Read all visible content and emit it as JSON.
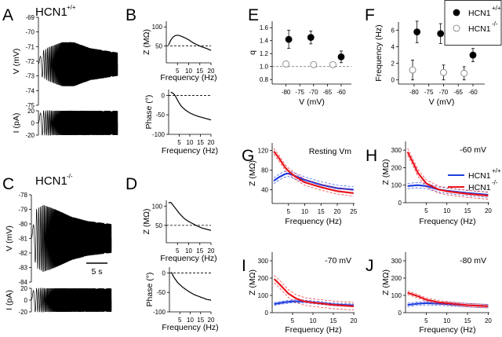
{
  "colors": {
    "wt": "#1f3fe0",
    "ko": "#e8141c",
    "black": "#000000"
  },
  "chart_data": [
    {
      "id": "A_V",
      "panel": "A",
      "type": "line",
      "title": "HCN1",
      "title_sup": "+/+",
      "ylabel": "V (mV)",
      "ylim": [
        -75,
        -69
      ],
      "yticks": [
        "-75",
        "-74",
        "-73",
        "-72",
        "-71",
        "-70",
        "-69"
      ],
      "xlim": [
        0,
        20
      ],
      "trace": {
        "kind": "chirp_voltage",
        "baseline": -72.2,
        "freq_range_hz": [
          0,
          20
        ],
        "duration_s": 20,
        "envelope": [
          [
            0,
            0.2
          ],
          [
            1,
            0.9
          ],
          [
            3,
            1.2
          ],
          [
            6,
            1.5
          ],
          [
            9,
            1.5
          ],
          [
            13,
            1.1
          ],
          [
            20,
            0.8
          ]
        ]
      }
    },
    {
      "id": "A_I",
      "panel": "A",
      "type": "line",
      "ylabel": "I (pA)",
      "ylim": [
        -20,
        20
      ],
      "yticks": [
        "-20",
        "0",
        "20"
      ],
      "xlim": [
        0,
        20
      ],
      "trace": {
        "kind": "chirp_current",
        "amplitude": 20,
        "freq_range_hz": [
          0,
          20
        ],
        "duration_s": 20
      }
    },
    {
      "id": "B_Z",
      "panel": "B",
      "type": "line",
      "xlabel": "Frequency (Hz)",
      "ylabel": "Z (MΩ)",
      "xlim": [
        0,
        20
      ],
      "ylim": [
        5,
        115
      ],
      "xticks": [
        "5",
        "10",
        "15",
        "20"
      ],
      "yticks": [
        "50",
        "100"
      ],
      "ref_line": 50,
      "series": [
        {
          "name": "HCN1+/+",
          "color": "black",
          "points": [
            [
              1,
              52
            ],
            [
              2,
              65
            ],
            [
              3,
              73
            ],
            [
              4,
              77
            ],
            [
              5,
              78
            ],
            [
              6,
              77
            ],
            [
              8,
              72
            ],
            [
              10,
              66
            ],
            [
              12,
              58
            ],
            [
              14,
              52
            ],
            [
              16,
              47
            ],
            [
              18,
              43
            ],
            [
              20,
              38
            ]
          ]
        }
      ]
    },
    {
      "id": "B_P",
      "panel": "B",
      "type": "line",
      "xlabel": "Frequency (Hz)",
      "ylabel": "Phase (°)",
      "xlim": [
        0,
        20
      ],
      "ylim": [
        -100,
        15
      ],
      "xticks": [
        "5",
        "10",
        "15",
        "20"
      ],
      "yticks": [
        "-100",
        "-50",
        "0"
      ],
      "ref_line": 0,
      "series": [
        {
          "name": "HCN1+/+",
          "color": "black",
          "points": [
            [
              1,
              8
            ],
            [
              2,
              6
            ],
            [
              3,
              0
            ],
            [
              4,
              -10
            ],
            [
              5,
              -20
            ],
            [
              6,
              -28
            ],
            [
              8,
              -38
            ],
            [
              10,
              -45
            ],
            [
              12,
              -50
            ],
            [
              14,
              -54
            ],
            [
              16,
              -57
            ],
            [
              18,
              -60
            ],
            [
              20,
              -63
            ]
          ]
        }
      ]
    },
    {
      "id": "C_V",
      "panel": "C",
      "type": "line",
      "title": "HCN1",
      "title_sup": "-/-",
      "ylabel": "V (mV)",
      "ylim": [
        -84,
        -78
      ],
      "yticks": [
        "-84",
        "-83",
        "-82",
        "-81",
        "-80",
        "-79",
        "-78"
      ],
      "xlim": [
        0,
        20
      ],
      "scalebar": "5 s",
      "trace": {
        "kind": "chirp_voltage",
        "baseline": -81.0,
        "freq_range_hz": [
          0,
          20
        ],
        "duration_s": 20,
        "envelope": [
          [
            0,
            0.2
          ],
          [
            1.2,
            2.0
          ],
          [
            3,
            2.3
          ],
          [
            6,
            2.0
          ],
          [
            10,
            1.5
          ],
          [
            14,
            1.2
          ],
          [
            20,
            1.0
          ]
        ]
      }
    },
    {
      "id": "C_I",
      "panel": "C",
      "type": "line",
      "ylabel": "I (pA)",
      "ylim": [
        -20,
        20
      ],
      "yticks": [
        "-20",
        "0",
        "20"
      ],
      "xlim": [
        0,
        20
      ],
      "trace": {
        "kind": "chirp_current",
        "amplitude": 20,
        "freq_range_hz": [
          0,
          20
        ],
        "duration_s": 20
      }
    },
    {
      "id": "D_Z",
      "panel": "D",
      "type": "line",
      "xlabel": "Frequency (Hz)",
      "ylabel": "Z (MΩ)",
      "xlim": [
        0,
        20
      ],
      "ylim": [
        5,
        115
      ],
      "xticks": [
        "5",
        "10",
        "15",
        "20"
      ],
      "yticks": [
        "50",
        "100"
      ],
      "ref_line": 50,
      "series": [
        {
          "name": "HCN1-/-",
          "color": "black",
          "points": [
            [
              1,
              108
            ],
            [
              2,
              110
            ],
            [
              4,
              95
            ],
            [
              6,
              80
            ],
            [
              8,
              68
            ],
            [
              10,
              60
            ],
            [
              12,
              54
            ],
            [
              14,
              48
            ],
            [
              16,
              43
            ],
            [
              18,
              40
            ],
            [
              20,
              37
            ]
          ]
        }
      ]
    },
    {
      "id": "D_P",
      "panel": "D",
      "type": "line",
      "xlabel": "Frequency (Hz)",
      "ylabel": "Phase (°)",
      "xlim": [
        0,
        20
      ],
      "ylim": [
        -100,
        15
      ],
      "xticks": [
        "5",
        "10",
        "15",
        "20"
      ],
      "yticks": [
        "-100",
        "-50",
        "0"
      ],
      "ref_line": 0,
      "series": [
        {
          "name": "HCN1-/-",
          "color": "black",
          "points": [
            [
              1,
              2
            ],
            [
              2,
              -10
            ],
            [
              4,
              -25
            ],
            [
              6,
              -35
            ],
            [
              8,
              -43
            ],
            [
              10,
              -50
            ],
            [
              12,
              -56
            ],
            [
              14,
              -60
            ],
            [
              16,
              -64
            ],
            [
              18,
              -68
            ],
            [
              20,
              -70
            ]
          ]
        }
      ]
    },
    {
      "id": "E",
      "panel": "E",
      "type": "scatter",
      "xlabel": "V (mV)",
      "ylabel": "q",
      "xlim": [
        -85,
        -56.3
      ],
      "ylim": [
        0.73,
        1.7
      ],
      "xticks": [
        "-80",
        "-75",
        "-70",
        "-65",
        "-60"
      ],
      "yticks": [
        "0.8",
        "1.0",
        "1.2",
        "1.4",
        "1.6"
      ],
      "ref_line": 1.0,
      "series": [
        {
          "name": "HCN1+/+",
          "filled": true,
          "points": [
            [
              -79,
              1.42,
              0.14
            ],
            [
              -71,
              1.45,
              0.1
            ],
            [
              -60,
              1.15,
              0.09
            ]
          ]
        },
        {
          "name": "HCN1-/-",
          "filled": false,
          "points": [
            [
              -80,
              1.04,
              0
            ],
            [
              -70,
              1.03,
              0
            ],
            [
              -63,
              1.03,
              0
            ]
          ]
        }
      ]
    },
    {
      "id": "F",
      "panel": "F",
      "type": "scatter",
      "xlabel": "V (mV)",
      "ylabel": "Frequency (Hz)",
      "xlim": [
        -85.3,
        -56
      ],
      "ylim": [
        -0.5,
        7
      ],
      "xticks": [
        "-80",
        "-75",
        "-70",
        "-65",
        "-60"
      ],
      "yticks": [
        "0",
        "2",
        "4",
        "6"
      ],
      "legend": {
        "placement": "top-right",
        "entries": [
          {
            "label": "HCN1",
            "sup": "+/+",
            "filled": true
          },
          {
            "label": "HCN1",
            "sup": "-/-",
            "filled": false
          }
        ]
      },
      "series": [
        {
          "name": "HCN1+/+",
          "filled": true,
          "points": [
            [
              -79,
              5.8,
              1.3
            ],
            [
              -71,
              5.6,
              1.2
            ],
            [
              -60,
              3.0,
              0.8
            ]
          ]
        },
        {
          "name": "HCN1-/-",
          "filled": false,
          "points": [
            [
              -80.5,
              1.2,
              1.2
            ],
            [
              -70,
              0.9,
              0.9
            ],
            [
              -63,
              0.8,
              0.8
            ]
          ]
        }
      ]
    },
    {
      "id": "G",
      "panel": "G",
      "type": "line",
      "annotation": "Resting Vm",
      "xlabel": "Frequency (Hz)",
      "ylabel": "Z (MΩ)",
      "xlim": [
        0,
        25.3
      ],
      "ylim": [
        12,
        135
      ],
      "xticks": [
        "5",
        "10",
        "15",
        "20",
        "25"
      ],
      "yticks": [
        "40",
        "80",
        "120"
      ],
      "series": [
        {
          "name": "HCN1+/+",
          "color": "wt",
          "band": 6,
          "points": [
            [
              0.5,
              58
            ],
            [
              2,
              65
            ],
            [
              4,
              72
            ],
            [
              5,
              73
            ],
            [
              7,
              68
            ],
            [
              10,
              60
            ],
            [
              15,
              50
            ],
            [
              20,
              43
            ],
            [
              25,
              40
            ]
          ]
        },
        {
          "name": "HCN1-/-",
          "color": "ko",
          "band": 6,
          "points": [
            [
              0.5,
              118
            ],
            [
              2,
              105
            ],
            [
              4,
              85
            ],
            [
              5,
              78
            ],
            [
              7,
              67
            ],
            [
              10,
              55
            ],
            [
              15,
              45
            ],
            [
              20,
              37
            ],
            [
              25,
              33
            ]
          ]
        }
      ]
    },
    {
      "id": "H",
      "panel": "H",
      "type": "line",
      "annotation": "-60 mV",
      "xlabel": "Frequency (Hz)",
      "ylabel": "Z (MΩ)",
      "xlim": [
        0,
        20.3
      ],
      "ylim": [
        0,
        350
      ],
      "xticks": [
        "5",
        "10",
        "15",
        "20"
      ],
      "yticks": [
        "0",
        "100",
        "200",
        "300"
      ],
      "legend": {
        "placement": "right",
        "entries": [
          {
            "label": "HCN1",
            "sup": "+/+",
            "color": "wt"
          },
          {
            "label": "HCN1",
            "sup": "-/-",
            "color": "ko"
          }
        ]
      },
      "series": [
        {
          "name": "HCN1+/+",
          "color": "wt",
          "band": 15,
          "points": [
            [
              0.5,
              95
            ],
            [
              3,
              100
            ],
            [
              5,
              95
            ],
            [
              8,
              75
            ],
            [
              10,
              68
            ],
            [
              15,
              55
            ],
            [
              20,
              45
            ]
          ]
        },
        {
          "name": "HCN1-/-",
          "color": "ko",
          "band": 20,
          "points": [
            [
              0.5,
              290
            ],
            [
              2,
              220
            ],
            [
              3,
              170
            ],
            [
              5,
              110
            ],
            [
              8,
              75
            ],
            [
              10,
              65
            ],
            [
              15,
              50
            ],
            [
              20,
              40
            ]
          ]
        }
      ]
    },
    {
      "id": "I",
      "panel": "I",
      "type": "line",
      "annotation": "-70 mV",
      "xlabel": "Frequency (Hz)",
      "ylabel": "Z (MΩ)",
      "xlim": [
        0,
        20.2
      ],
      "ylim": [
        0,
        350
      ],
      "xticks": [
        "5",
        "10",
        "15",
        "20"
      ],
      "yticks": [
        "0",
        "100",
        "200",
        "300"
      ],
      "series": [
        {
          "name": "HCN1+/+",
          "color": "wt",
          "band": 8,
          "points": [
            [
              0.5,
              50
            ],
            [
              3,
              60
            ],
            [
              5,
              65
            ],
            [
              8,
              65
            ],
            [
              10,
              60
            ],
            [
              15,
              48
            ],
            [
              20,
              42
            ]
          ]
        },
        {
          "name": "HCN1-/-",
          "color": "ko",
          "band": 22,
          "points": [
            [
              0.5,
              195
            ],
            [
              2,
              160
            ],
            [
              4,
              110
            ],
            [
              6,
              80
            ],
            [
              8,
              65
            ],
            [
              10,
              58
            ],
            [
              15,
              45
            ],
            [
              20,
              37
            ]
          ]
        }
      ]
    },
    {
      "id": "J",
      "panel": "J",
      "type": "line",
      "annotation": "-80 mV",
      "xlabel": "Frequency (Hz)",
      "ylabel": "Z (MΩ)",
      "xlim": [
        0,
        20.3
      ],
      "ylim": [
        0,
        350
      ],
      "xticks": [
        "5",
        "10",
        "15",
        "20"
      ],
      "yticks": [
        "0",
        "100",
        "200",
        "300"
      ],
      "series": [
        {
          "name": "HCN1+/+",
          "color": "wt",
          "band": 10,
          "points": [
            [
              0.5,
              45
            ],
            [
              3,
              52
            ],
            [
              5,
              55
            ],
            [
              10,
              50
            ],
            [
              15,
              43
            ],
            [
              20,
              38
            ]
          ]
        },
        {
          "name": "HCN1-/-",
          "color": "ko",
          "band": 10,
          "points": [
            [
              0.5,
              115
            ],
            [
              3,
              95
            ],
            [
              5,
              75
            ],
            [
              8,
              60
            ],
            [
              10,
              55
            ],
            [
              15,
              43
            ],
            [
              20,
              37
            ]
          ]
        }
      ]
    }
  ]
}
